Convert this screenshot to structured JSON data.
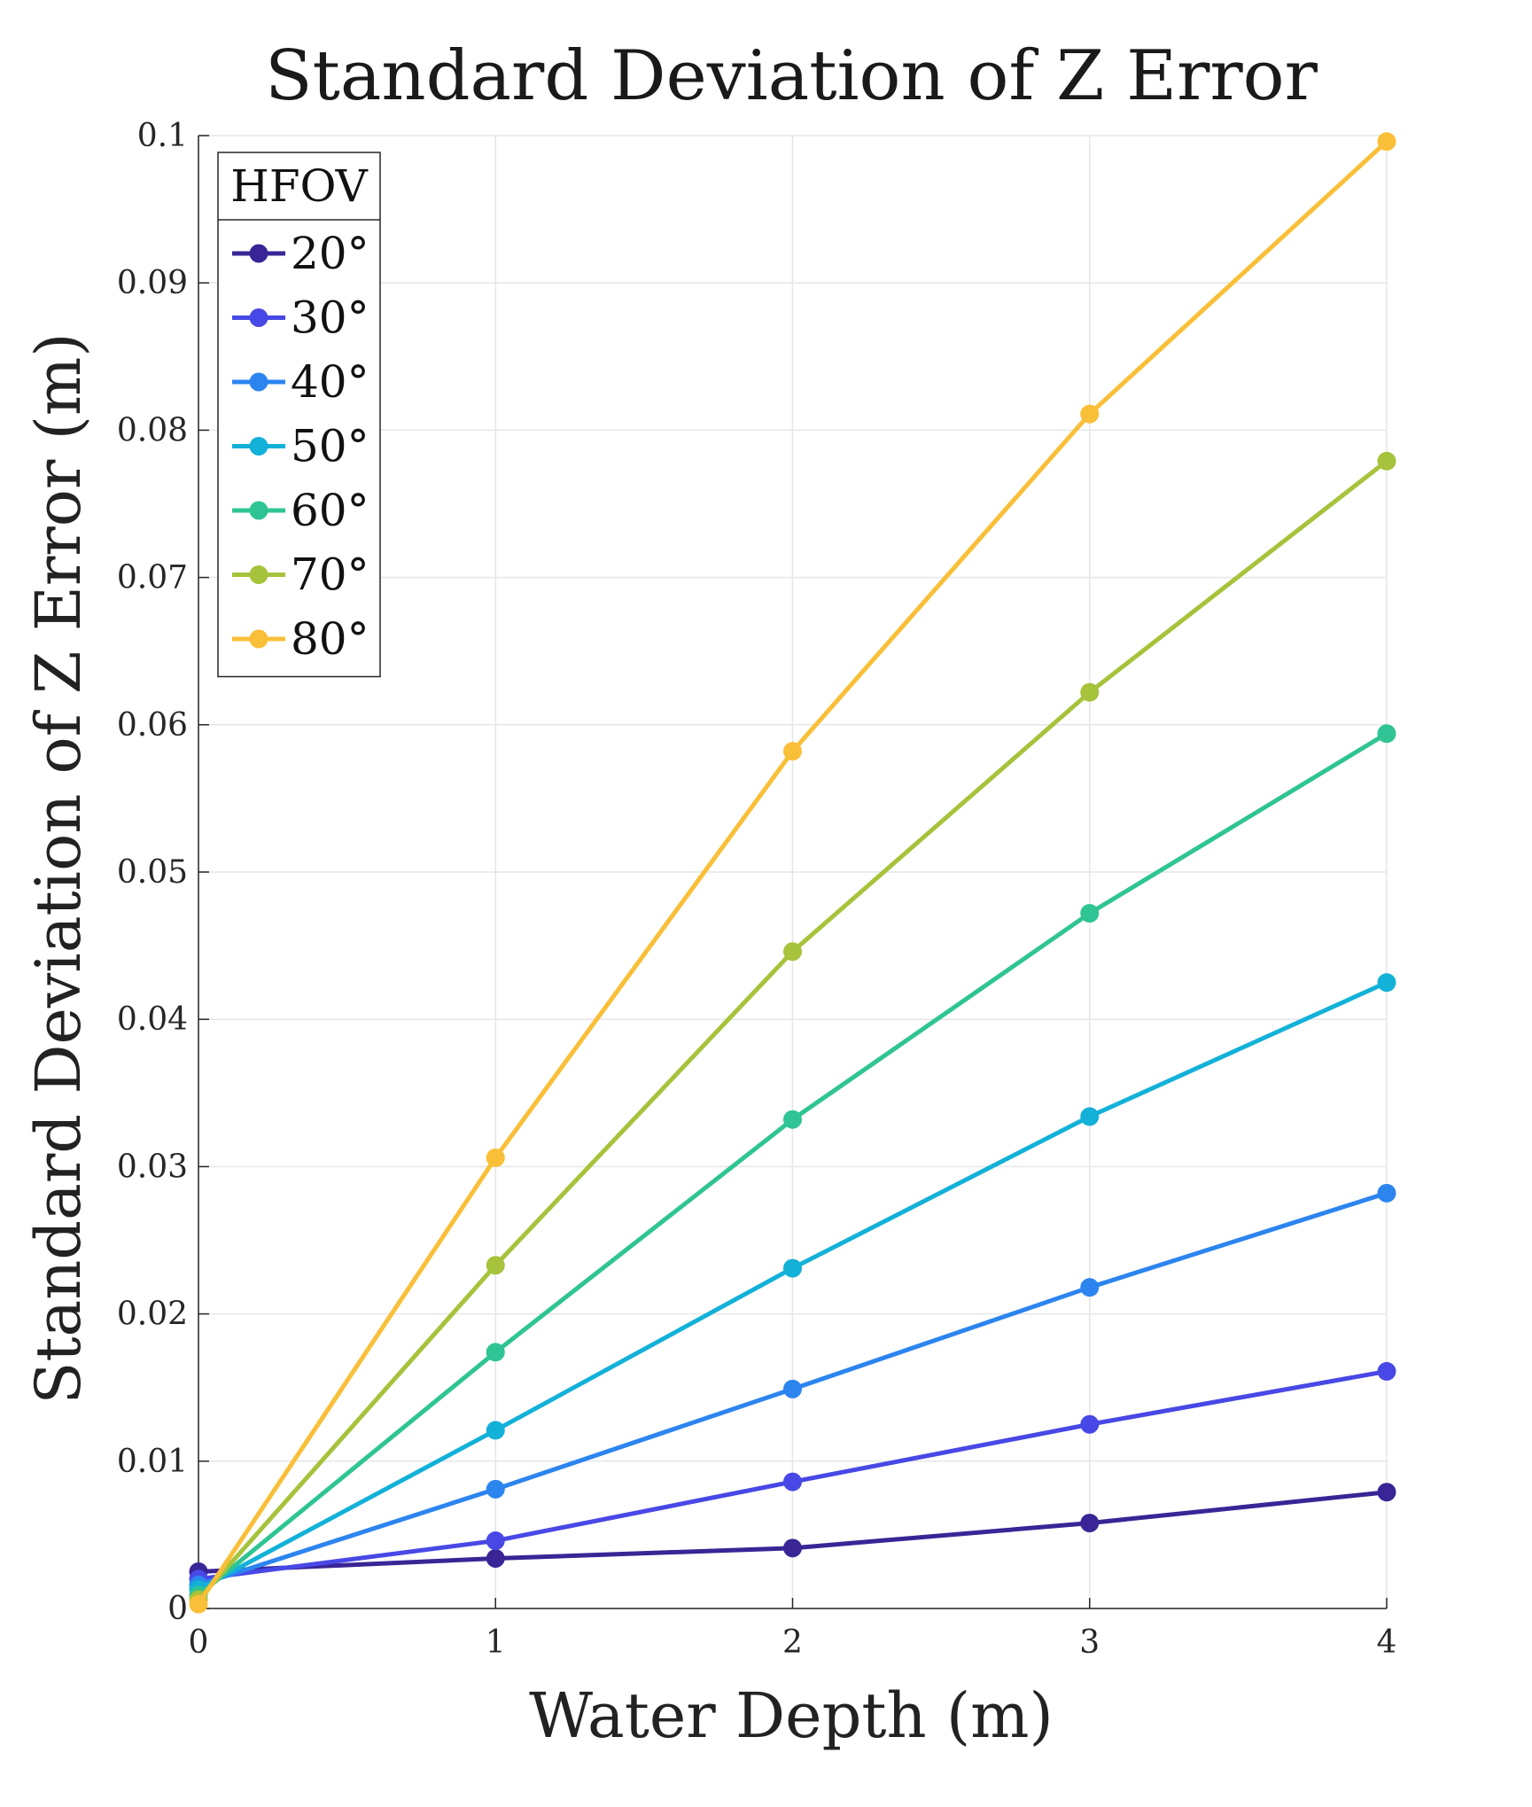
{
  "chart_data": {
    "type": "line",
    "title": "Standard Deviation of Z Error",
    "xlabel": "Water Depth (m)",
    "ylabel": "Standard Deviation of Z Error (m)",
    "xlim": [
      0,
      4
    ],
    "ylim": [
      0,
      0.1
    ],
    "xticks": [
      0,
      1,
      2,
      3,
      4
    ],
    "xtick_labels": [
      "0",
      "1",
      "2",
      "3",
      "4"
    ],
    "yticks": [
      0,
      0.01,
      0.02,
      0.03,
      0.04,
      0.05,
      0.06,
      0.07,
      0.08,
      0.09,
      0.1
    ],
    "ytick_labels": [
      "0",
      "0.01",
      "0.02",
      "0.03",
      "0.04",
      "0.05",
      "0.06",
      "0.07",
      "0.08",
      "0.09",
      "0.1"
    ],
    "grid": true,
    "legend_title": "HFOV",
    "legend_position": "top-left",
    "x": [
      0,
      1,
      2,
      3,
      4
    ],
    "series": [
      {
        "name": "20°",
        "color": "#3a2596",
        "values": [
          0.0025,
          0.0034,
          0.0041,
          0.0058,
          0.0079
        ]
      },
      {
        "name": "30°",
        "color": "#4848e6",
        "values": [
          0.002,
          0.0046,
          0.0086,
          0.0125,
          0.0161
        ]
      },
      {
        "name": "40°",
        "color": "#2c85ef",
        "values": [
          0.0016,
          0.0081,
          0.0149,
          0.0218,
          0.0282
        ]
      },
      {
        "name": "50°",
        "color": "#13b1d8",
        "values": [
          0.0013,
          0.0121,
          0.0231,
          0.0334,
          0.0425
        ]
      },
      {
        "name": "60°",
        "color": "#2fc494",
        "values": [
          0.0009,
          0.0174,
          0.0332,
          0.0472,
          0.0594
        ]
      },
      {
        "name": "70°",
        "color": "#a6c33b",
        "values": [
          0.0006,
          0.0233,
          0.0446,
          0.0622,
          0.0779
        ]
      },
      {
        "name": "80°",
        "color": "#f9bf38",
        "values": [
          0.0003,
          0.0306,
          0.0582,
          0.0811,
          0.0996
        ]
      }
    ]
  }
}
